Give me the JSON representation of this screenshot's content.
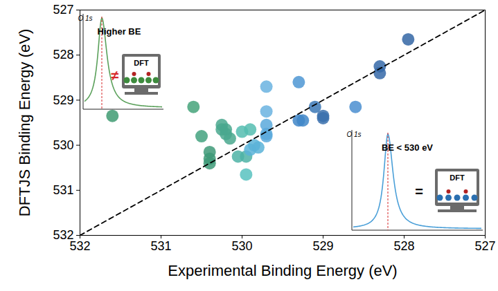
{
  "chart_data": {
    "type": "scatter",
    "x_label": "Experimental Binding Energy (eV)",
    "y_label": "DFTJS Binding Energy (eV)",
    "xlim": [
      532,
      527
    ],
    "xticks": [
      532,
      531,
      530,
      529,
      528,
      527
    ],
    "ylim": [
      532,
      527
    ],
    "yticks": [
      532,
      531,
      530,
      529,
      528,
      527
    ],
    "grid": false,
    "series": [
      {
        "type": "scatter",
        "marker": "circle",
        "x": [
          531.6,
          530.6,
          530.5,
          530.4,
          530.4,
          530.4,
          530.25,
          530.2,
          530.2,
          530.15,
          530.25,
          530.05,
          529.95,
          529.95,
          530.0,
          529.9,
          529.9,
          529.85,
          529.8,
          529.7,
          529.7,
          529.7,
          529.7,
          529.7,
          529.3,
          529.3,
          529.25,
          529.1,
          529.0,
          529.0,
          528.6,
          528.3,
          528.3,
          527.95
        ],
        "values": [
          529.35,
          529.15,
          529.8,
          530.15,
          530.3,
          530.4,
          529.55,
          529.65,
          529.75,
          529.85,
          529.65,
          530.25,
          530.25,
          530.65,
          529.7,
          529.65,
          530.1,
          530.0,
          530.05,
          528.7,
          529.25,
          529.55,
          529.75,
          529.8,
          528.6,
          529.45,
          529.45,
          529.15,
          529.35,
          529.4,
          529.15,
          528.25,
          528.4,
          527.65
        ],
        "colors": [
          "#3f9b72",
          "#45a37a",
          "#43a27f",
          "#3e9a78",
          "#3e9a78",
          "#3e9a78",
          "#4aa88e",
          "#4aa88e",
          "#4aa88e",
          "#4aa88e",
          "#4aa88e",
          "#4db3a6",
          "#4db3a6",
          "#58c2c0",
          "#55bdb0",
          "#55bdb0",
          "#5ab3d8",
          "#5ab3d8",
          "#5ab3d8",
          "#6ab3e0",
          "#6ab3e0",
          "#5aa9dc",
          "#5aa9dc",
          "#5aa9dc",
          "#4d97d4",
          "#3f86c8",
          "#3f86c8",
          "#3b78b6",
          "#3a70ad",
          "#3a70ad",
          "#4a8ed0",
          "#3568a8",
          "#3568a8",
          "#3466a4"
        ]
      },
      {
        "type": "line",
        "line_style": "dashed",
        "color": "#000000",
        "x": [
          532,
          527
        ],
        "values": [
          532,
          527
        ]
      }
    ],
    "annotations": {
      "left_inset": {
        "peak_label": "O 1s",
        "text": "Higher BE",
        "relation": "≠",
        "computer": "DFT"
      },
      "right_inset": {
        "peak_label": "O 1s",
        "text": "BE < 530 eV",
        "relation": "=",
        "computer": "DFT"
      }
    }
  }
}
